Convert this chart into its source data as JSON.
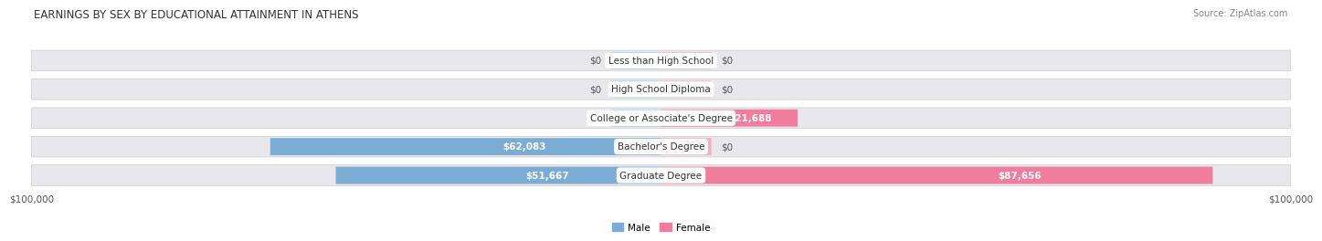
{
  "title": "EARNINGS BY SEX BY EDUCATIONAL ATTAINMENT IN ATHENS",
  "source": "Source: ZipAtlas.com",
  "categories": [
    "Less than High School",
    "High School Diploma",
    "College or Associate's Degree",
    "Bachelor's Degree",
    "Graduate Degree"
  ],
  "male_values": [
    0,
    0,
    0,
    62083,
    51667
  ],
  "female_values": [
    0,
    0,
    21688,
    0,
    87656
  ],
  "male_color": "#7badd4",
  "female_color": "#f07ca0",
  "male_stub_color": "#aac8e8",
  "female_stub_color": "#f5aec4",
  "row_bg_color": "#e8e8ec",
  "max_value": 100000,
  "min_stub": 8000,
  "xlabel_left": "$100,000",
  "xlabel_right": "$100,000",
  "legend_male": "Male",
  "legend_female": "Female",
  "title_fontsize": 8.5,
  "source_fontsize": 7.0,
  "label_fontsize": 7.5,
  "category_fontsize": 7.5,
  "axis_label_fontsize": 7.5
}
